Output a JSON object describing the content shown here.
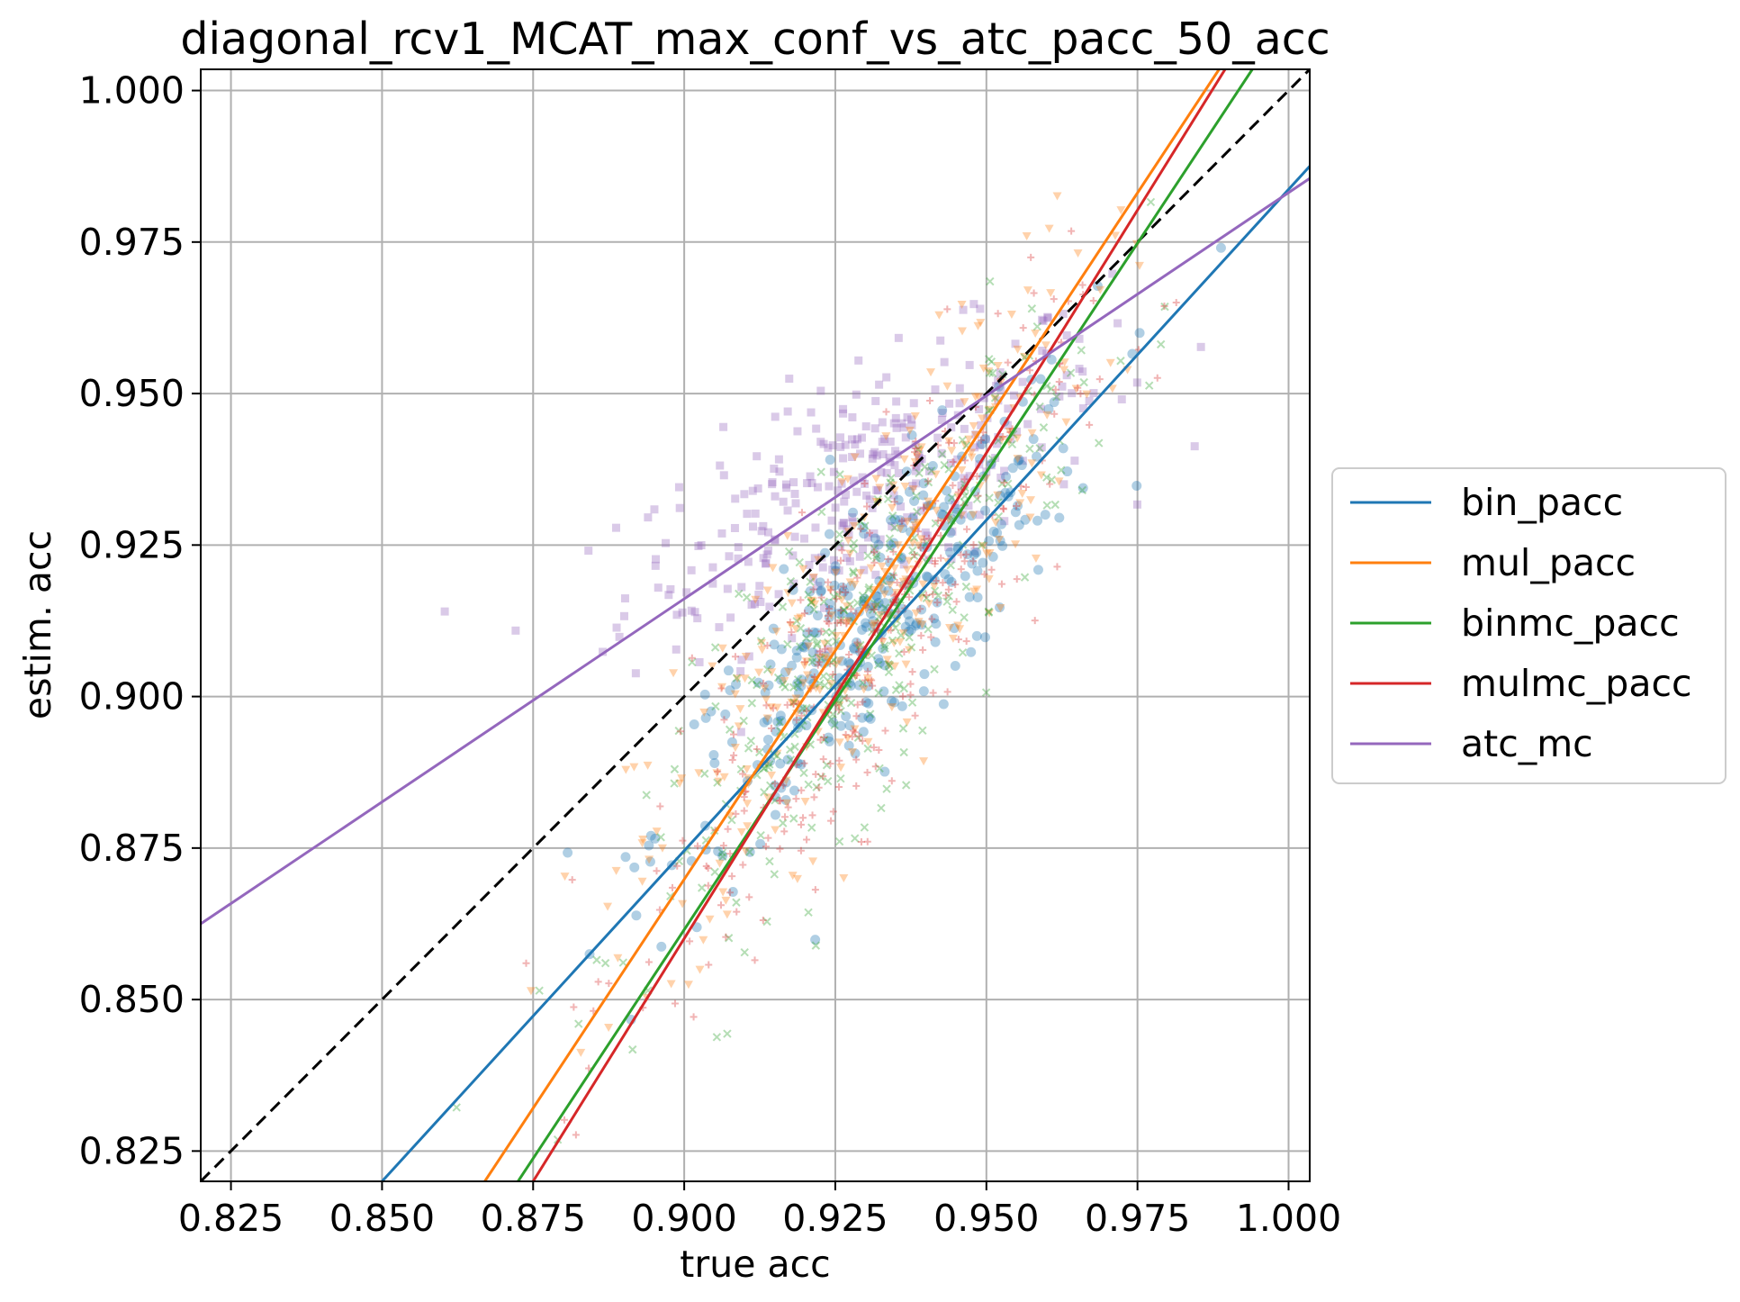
{
  "chart_data": {
    "type": "scatter",
    "title": "diagonal_rcv1_MCAT_max_conf_vs_atc_pacc_50_acc",
    "xlabel": "true acc",
    "ylabel": "estim. acc",
    "xlim": [
      0.82,
      1.0035
    ],
    "ylim": [
      0.82,
      1.0035
    ],
    "xticks": [
      0.825,
      0.85,
      0.875,
      0.9,
      0.925,
      0.95,
      0.975,
      1.0
    ],
    "yticks": [
      0.825,
      0.85,
      0.875,
      0.9,
      0.925,
      0.95,
      0.975,
      1.0
    ],
    "xtick_labels": [
      "0.825",
      "0.850",
      "0.875",
      "0.900",
      "0.925",
      "0.950",
      "0.975",
      "1.000"
    ],
    "ytick_labels": [
      "0.825",
      "0.850",
      "0.875",
      "0.900",
      "0.925",
      "0.950",
      "0.975",
      "1.000"
    ],
    "grid": true,
    "legend_position": "outside-right",
    "diagonal": {
      "style": "dashed",
      "color": "#000000",
      "x": [
        0.82,
        1.0035
      ],
      "y": [
        0.82,
        1.0035
      ]
    },
    "series": [
      {
        "name": "bin_pacc",
        "color": "#1f77b4",
        "marker": "circle",
        "fit_line": {
          "x": [
            0.85,
            1.0035
          ],
          "y": [
            0.82,
            0.9875
          ]
        },
        "scatter_center": [
          0.932,
          0.912
        ],
        "scatter_spread": [
          0.018,
          0.02
        ],
        "corr": 0.85
      },
      {
        "name": "mul_pacc",
        "color": "#ff7f0e",
        "marker": "triangle-down",
        "fit_line": {
          "x": [
            0.867,
            0.9885
          ],
          "y": [
            0.82,
            1.0035
          ]
        },
        "scatter_center": [
          0.93,
          0.915
        ],
        "scatter_spread": [
          0.019,
          0.027
        ],
        "corr": 0.85
      },
      {
        "name": "binmc_pacc",
        "color": "#2ca02c",
        "marker": "x",
        "fit_line": {
          "x": [
            0.8725,
            0.994
          ],
          "y": [
            0.82,
            1.0035
          ]
        },
        "scatter_center": [
          0.93,
          0.91
        ],
        "scatter_spread": [
          0.018,
          0.025
        ],
        "corr": 0.85
      },
      {
        "name": "mulmc_pacc",
        "color": "#d62728",
        "marker": "plus",
        "fit_line": {
          "x": [
            0.875,
            0.9895
          ],
          "y": [
            0.82,
            1.0035
          ]
        },
        "scatter_center": [
          0.928,
          0.905
        ],
        "scatter_spread": [
          0.018,
          0.026
        ],
        "corr": 0.85
      },
      {
        "name": "atc_mc",
        "color": "#9467bd",
        "marker": "square",
        "fit_line": {
          "x": [
            0.82,
            1.0035
          ],
          "y": [
            0.8625,
            0.9855
          ]
        },
        "scatter_center": [
          0.93,
          0.935
        ],
        "scatter_spread": [
          0.02,
          0.013
        ],
        "corr": 0.7
      }
    ]
  }
}
